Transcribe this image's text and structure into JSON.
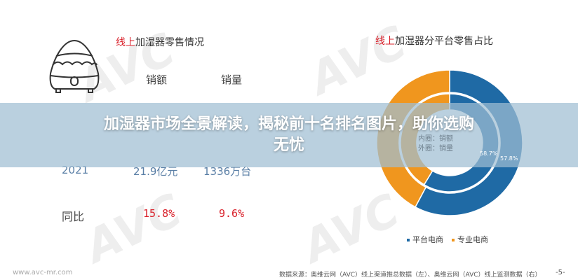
{
  "left_panel": {
    "title_highlight": "线上",
    "title_rest": "加湿器零售情况",
    "col_headers": [
      "销额",
      "销量"
    ],
    "rows": [
      {
        "label": "2021",
        "sales_value": "21.9亿元",
        "sales_volume": "1336万台"
      },
      {
        "label": "同比",
        "sales_value": "15.8%",
        "sales_volume": "9.6%"
      }
    ]
  },
  "right_panel": {
    "title_highlight": "线上",
    "title_rest": "加湿器分平台零售占比",
    "center_line1": "内圈：销额",
    "center_line2": "外圈：销量",
    "inner_label": "58.7%",
    "outer_label": "57.8%",
    "legend": [
      {
        "name": "平台电商",
        "color": "#1f6aa5"
      },
      {
        "name": "专业电商",
        "color": "#f0961e"
      }
    ]
  },
  "chart_data": {
    "type": "pie",
    "subtype": "double-donut",
    "categories": [
      "平台电商",
      "专业电商"
    ],
    "series": [
      {
        "name": "内圈：销额",
        "values": [
          58.7,
          41.3
        ]
      },
      {
        "name": "外圈：销量",
        "values": [
          57.8,
          42.2
        ]
      }
    ],
    "colors": [
      "#1f6aa5",
      "#f0961e"
    ],
    "legend_position": "bottom"
  },
  "banner": {
    "line1": "加湿器市场全景解读，揭秘前十名排名图片，助你选购",
    "line2": "无忧"
  },
  "footer": {
    "website": "www.avc-mr.com",
    "source": "数据来源：奥维云网（AVC）线上渠道推总数据（左）、奥维云网（AVC）线上监测数据（右）",
    "page": "-5-"
  },
  "watermark": "AVC 奥维云网 ALL VIEW CLOUD"
}
